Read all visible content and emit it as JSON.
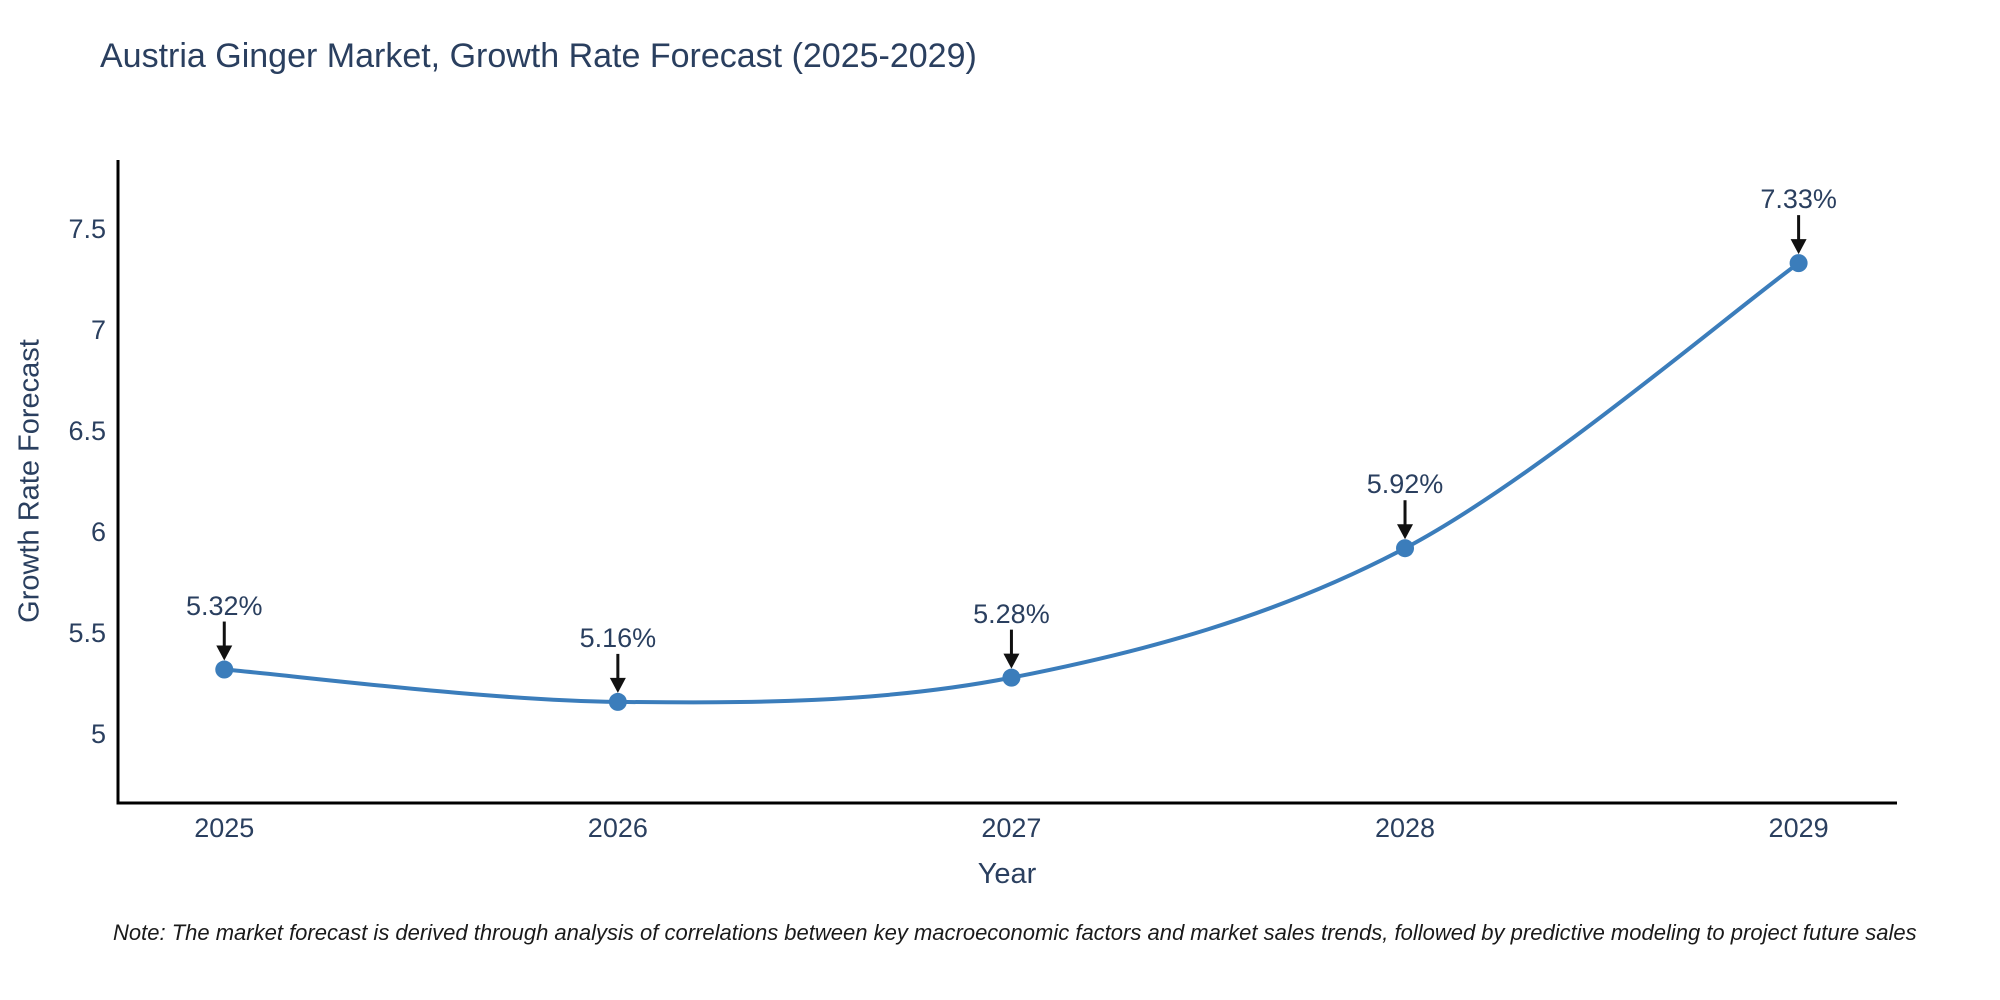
{
  "chart_data": {
    "type": "line",
    "title": "Austria Ginger Market, Growth Rate Forecast (2025-2029)",
    "xlabel": "Year",
    "ylabel": "Growth Rate Forecast",
    "x": [
      2025,
      2026,
      2027,
      2028,
      2029
    ],
    "series": [
      {
        "name": "Growth Rate Forecast",
        "values": [
          5.32,
          5.16,
          5.28,
          5.92,
          7.33
        ]
      }
    ],
    "annotations": [
      "5.32%",
      "5.16%",
      "5.28%",
      "5.92%",
      "7.33%"
    ],
    "xticks": [
      "2025",
      "2026",
      "2027",
      "2028",
      "2029"
    ],
    "yticks": {
      "values": [
        5,
        5.5,
        6,
        6.5,
        7,
        7.5
      ],
      "labels": [
        "5",
        "5.5",
        "6",
        "6.5",
        "7",
        "7.5"
      ]
    },
    "xlim": [
      2024.73,
      2029.25
    ],
    "ylim": [
      4.66,
      7.84
    ],
    "grid": false,
    "legend": "none",
    "line_shape": "spline",
    "colors": {
      "line": "#3b7dbb",
      "marker": "#3b7dbb",
      "axis": "#000000",
      "text": "#2a3f5f",
      "arrow": "#111111"
    }
  },
  "note": {
    "text": "Note: The market forecast is derived through analysis of correlations between key macroeconomic factors and market sales trends, followed by predictive modeling to project future sales"
  }
}
